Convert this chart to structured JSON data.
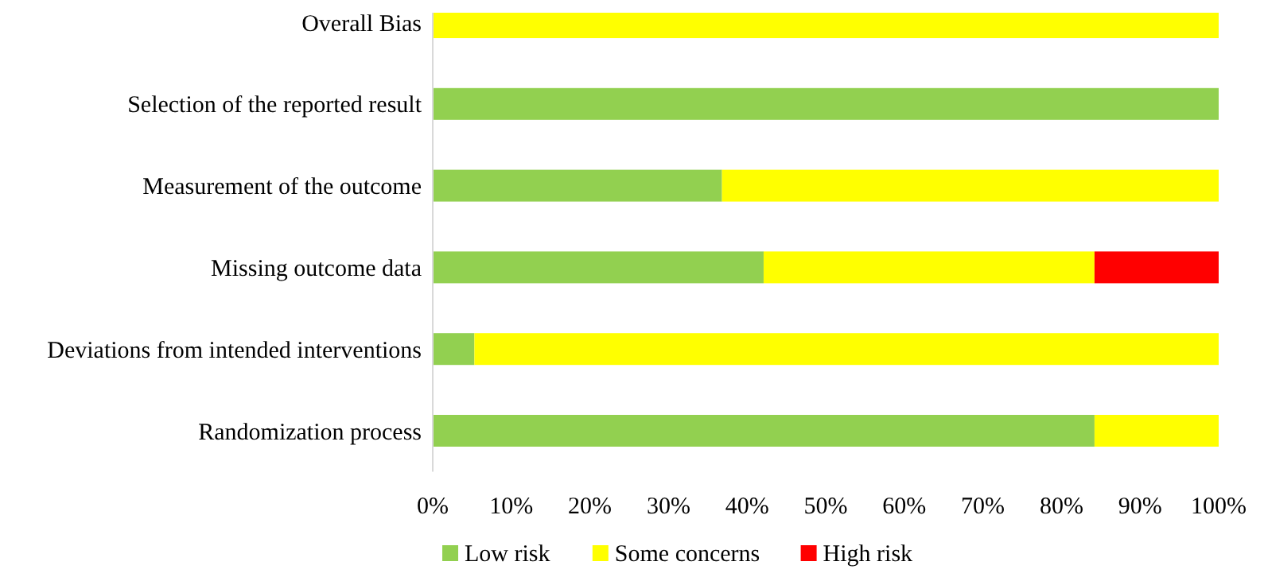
{
  "chart_data": {
    "type": "bar",
    "orientation": "horizontal",
    "stacked": true,
    "categories": [
      "Overall Bias",
      "Selection of the reported result",
      "Measurement of the outcome",
      "Missing outcome data",
      "Deviations from intended interventions",
      "Randomization process"
    ],
    "series": [
      {
        "name": "Low risk",
        "color": "#92d050",
        "values": [
          0,
          100,
          36.8,
          42.1,
          5.3,
          84.2
        ]
      },
      {
        "name": "Some concerns",
        "color": "#ffff00",
        "values": [
          100,
          0,
          63.2,
          42.1,
          94.7,
          15.8
        ]
      },
      {
        "name": "High risk",
        "color": "#ff0000",
        "values": [
          0,
          0,
          0,
          15.8,
          0,
          0
        ]
      }
    ],
    "xlim": [
      0,
      100
    ],
    "xticks": [
      {
        "value": 0,
        "label": "0%"
      },
      {
        "value": 10,
        "label": "10%"
      },
      {
        "value": 20,
        "label": "20%"
      },
      {
        "value": 30,
        "label": "30%"
      },
      {
        "value": 40,
        "label": "40%"
      },
      {
        "value": 50,
        "label": "50%"
      },
      {
        "value": 60,
        "label": "60%"
      },
      {
        "value": 70,
        "label": "70%"
      },
      {
        "value": 80,
        "label": "80%"
      },
      {
        "value": 90,
        "label": "90%"
      },
      {
        "value": 100,
        "label": "100%"
      }
    ],
    "grid": false,
    "legend": "bottom"
  }
}
